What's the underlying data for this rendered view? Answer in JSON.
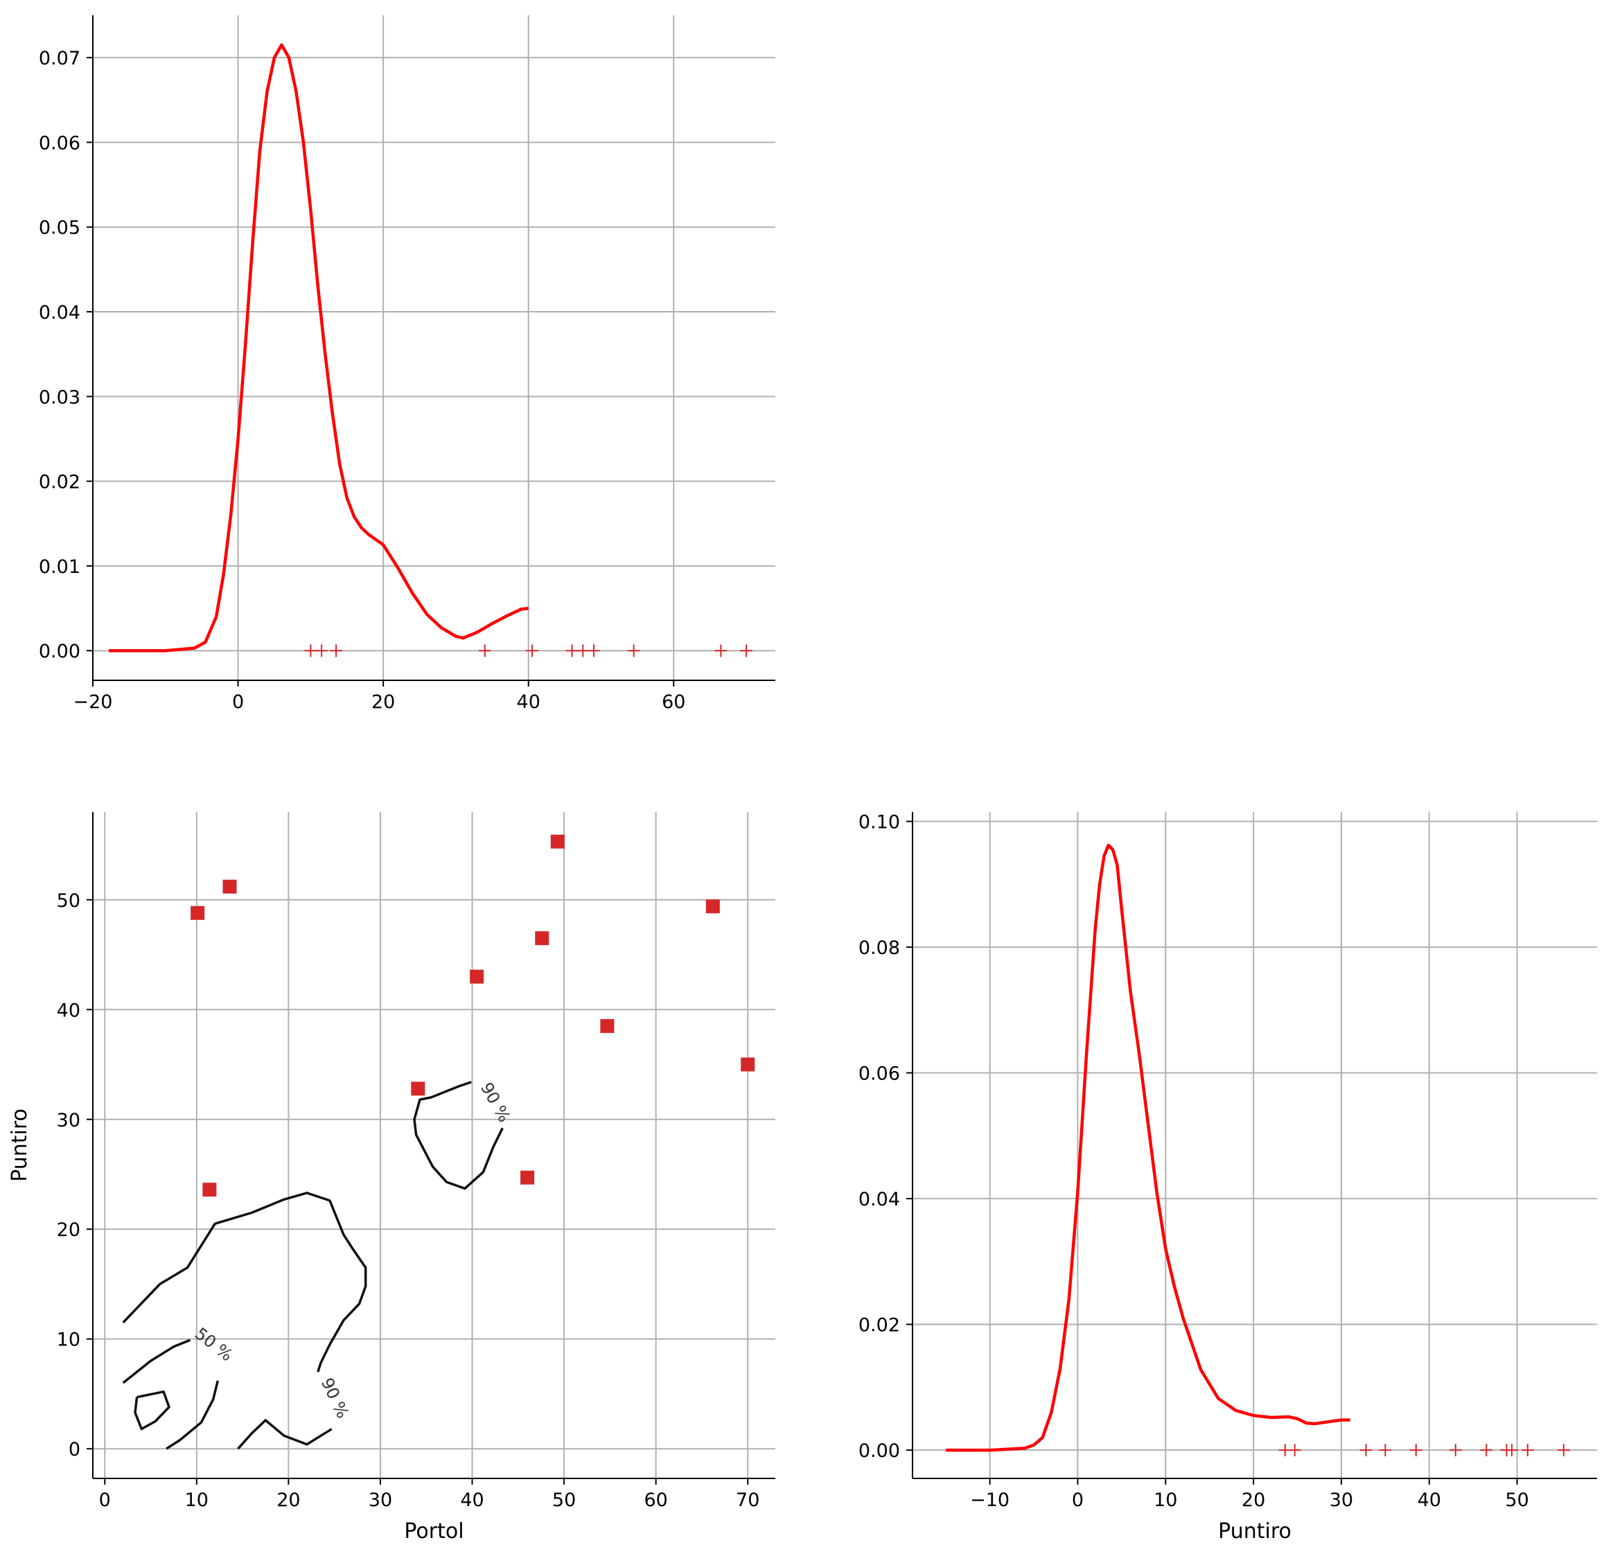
{
  "chart_data": [
    {
      "type": "line",
      "panel": "top-left",
      "title": "",
      "xlabel": "",
      "ylabel": "",
      "xlim": [
        -20,
        74
      ],
      "ylim": [
        -0.0035,
        0.075
      ],
      "xticks": [
        -20,
        0,
        20,
        40,
        60
      ],
      "yticks": [
        0.0,
        0.01,
        0.02,
        0.03,
        0.04,
        0.05,
        0.06,
        0.07
      ],
      "xtick_labels": [
        "−20",
        "0",
        "20",
        "40",
        "60"
      ],
      "ytick_labels": [
        "0.00",
        "0.01",
        "0.02",
        "0.03",
        "0.04",
        "0.05",
        "0.06",
        "0.07"
      ],
      "grid": true,
      "line_color": "#ff0000",
      "rug_color": "#d62728",
      "series": [
        {
          "x": [
            -17.8,
            -10,
            -6,
            -4.5,
            -3,
            -2,
            -1,
            0,
            1,
            2,
            3,
            4,
            5,
            6,
            7,
            8,
            9,
            10,
            11,
            12,
            13,
            14,
            15,
            16,
            17,
            18,
            20,
            22,
            24,
            26,
            28,
            30,
            31,
            33,
            35,
            37,
            39,
            40
          ],
          "y": [
            0.0,
            0.0,
            0.0003,
            0.001,
            0.004,
            0.009,
            0.016,
            0.025,
            0.036,
            0.048,
            0.059,
            0.066,
            0.07,
            0.0715,
            0.07,
            0.066,
            0.06,
            0.052,
            0.043,
            0.035,
            0.028,
            0.022,
            0.018,
            0.0158,
            0.0145,
            0.0137,
            0.0125,
            0.0098,
            0.0068,
            0.0043,
            0.0027,
            0.0017,
            0.0015,
            0.0022,
            0.0032,
            0.0041,
            0.0049,
            0.005
          ]
        }
      ],
      "rug": [
        10,
        11.5,
        13.5,
        34,
        40.5,
        46,
        47.5,
        49,
        54.5,
        66.5,
        70
      ]
    },
    {
      "type": "scatter",
      "panel": "bottom-left",
      "title": "",
      "xlabel": "Portol",
      "ylabel": "Puntiro",
      "xlim": [
        -1.3,
        73
      ],
      "ylim": [
        -2.7,
        58
      ],
      "xticks": [
        0,
        10,
        20,
        30,
        40,
        50,
        60,
        70
      ],
      "yticks": [
        0,
        10,
        20,
        30,
        40,
        50
      ],
      "xtick_labels": [
        "0",
        "10",
        "20",
        "30",
        "40",
        "50",
        "60",
        "70"
      ],
      "ytick_labels": [
        "0",
        "10",
        "20",
        "30",
        "40",
        "50"
      ],
      "grid": true,
      "marker_color": "#d62728",
      "points": [
        {
          "x": 10.1,
          "y": 48.8
        },
        {
          "x": 13.6,
          "y": 51.2
        },
        {
          "x": 11.4,
          "y": 23.6
        },
        {
          "x": 34.1,
          "y": 32.8
        },
        {
          "x": 40.5,
          "y": 43.0
        },
        {
          "x": 46.0,
          "y": 24.7
        },
        {
          "x": 47.6,
          "y": 46.5
        },
        {
          "x": 49.3,
          "y": 55.3
        },
        {
          "x": 54.7,
          "y": 38.5
        },
        {
          "x": 66.2,
          "y": 49.4
        },
        {
          "x": 70.0,
          "y": 35.0
        }
      ],
      "contours": [
        {
          "level": "90 %",
          "points": [
            [
              2,
              11.5
            ],
            [
              6,
              15
            ],
            [
              9,
              16.5
            ],
            [
              12,
              20.5
            ],
            [
              16,
              21.5
            ],
            [
              19.5,
              22.7
            ],
            [
              22,
              23.3
            ],
            [
              24.5,
              22.6
            ],
            [
              26,
              19.5
            ],
            [
              27,
              18.2
            ],
            [
              28.4,
              16.5
            ],
            [
              28.4,
              14.8
            ],
            [
              27.7,
              13.2
            ],
            [
              26,
              11.7
            ],
            [
              24.5,
              9.5
            ],
            [
              23.5,
              7.8
            ],
            [
              23.2,
              7.0
            ]
          ]
        },
        {
          "level": "90 %",
          "points": [
            [
              24.7,
              1.8
            ],
            [
              22,
              0.4
            ],
            [
              19.5,
              1.2
            ],
            [
              17.5,
              2.6
            ],
            [
              16,
              1.4
            ],
            [
              14.5,
              0.0
            ]
          ]
        },
        {
          "level": "50 %",
          "points": [
            [
              2,
              6.0
            ],
            [
              5,
              8.0
            ],
            [
              7.5,
              9.3
            ],
            [
              9.3,
              9.9
            ]
          ]
        },
        {
          "level": "50 %",
          "points": [
            [
              12.3,
              6.2
            ],
            [
              11.8,
              4.5
            ],
            [
              10.5,
              2.4
            ],
            [
              8.2,
              0.8
            ],
            [
              6.7,
              0.0
            ]
          ]
        },
        {
          "level": "",
          "points": [
            [
              3.5,
              4.7
            ],
            [
              6.4,
              5.2
            ],
            [
              7.0,
              3.8
            ],
            [
              5.5,
              2.5
            ],
            [
              4.0,
              1.8
            ],
            [
              3.3,
              3.3
            ],
            [
              3.5,
              4.7
            ]
          ]
        },
        {
          "level": "90 %",
          "points": [
            [
              39.9,
              33.4
            ],
            [
              38.5,
              33.0
            ],
            [
              35.5,
              32.0
            ],
            [
              34.3,
              31.8
            ],
            [
              33.7,
              30.0
            ],
            [
              33.9,
              28.6
            ],
            [
              35.7,
              25.7
            ],
            [
              37.2,
              24.3
            ],
            [
              39.2,
              23.7
            ],
            [
              41.2,
              25.2
            ],
            [
              42.3,
              27.5
            ],
            [
              43.3,
              29.2
            ]
          ]
        }
      ],
      "contour_labels": [
        {
          "text": "90 %",
          "x": 42.0,
          "y": 31.3,
          "rotate": 61
        },
        {
          "text": "50 %",
          "x": 11.5,
          "y": 9.1,
          "rotate": 38
        },
        {
          "text": "90 %",
          "x": 24.5,
          "y": 4.4,
          "rotate": 65
        }
      ]
    },
    {
      "type": "line",
      "panel": "bottom-right",
      "title": "",
      "xlabel": "Puntiro",
      "ylabel": "",
      "xlim": [
        -18.8,
        59.1
      ],
      "ylim": [
        -0.0045,
        0.1015
      ],
      "xticks": [
        -10,
        0,
        10,
        20,
        30,
        40,
        50
      ],
      "yticks": [
        0.0,
        0.02,
        0.04,
        0.06,
        0.08,
        0.1
      ],
      "xtick_labels": [
        "−10",
        "0",
        "10",
        "20",
        "30",
        "40",
        "50"
      ],
      "ytick_labels": [
        "0.00",
        "0.02",
        "0.04",
        "0.06",
        "0.08",
        "0.10"
      ],
      "grid": true,
      "line_color": "#ff0000",
      "rug_color": "#d62728",
      "series": [
        {
          "x": [
            -15,
            -10,
            -6,
            -5,
            -4,
            -3,
            -2,
            -1,
            0,
            1,
            2,
            2.5,
            3,
            3.5,
            4,
            4.5,
            5,
            6,
            7,
            8,
            9,
            10,
            11,
            12,
            14,
            16,
            18,
            20,
            22,
            24,
            25,
            26,
            27,
            28,
            29,
            30,
            31
          ],
          "y": [
            0.0,
            0.0,
            0.0003,
            0.0008,
            0.002,
            0.006,
            0.013,
            0.024,
            0.041,
            0.063,
            0.083,
            0.09,
            0.0945,
            0.0962,
            0.0955,
            0.093,
            0.086,
            0.073,
            0.063,
            0.052,
            0.041,
            0.032,
            0.026,
            0.021,
            0.0128,
            0.0082,
            0.0063,
            0.0055,
            0.0052,
            0.0053,
            0.005,
            0.0043,
            0.0042,
            0.0044,
            0.0046,
            0.0048,
            0.0048
          ]
        }
      ],
      "rug": [
        23.6,
        24.7,
        32.8,
        35.0,
        38.5,
        43.0,
        46.5,
        48.8,
        49.4,
        51.2,
        55.3
      ]
    }
  ]
}
